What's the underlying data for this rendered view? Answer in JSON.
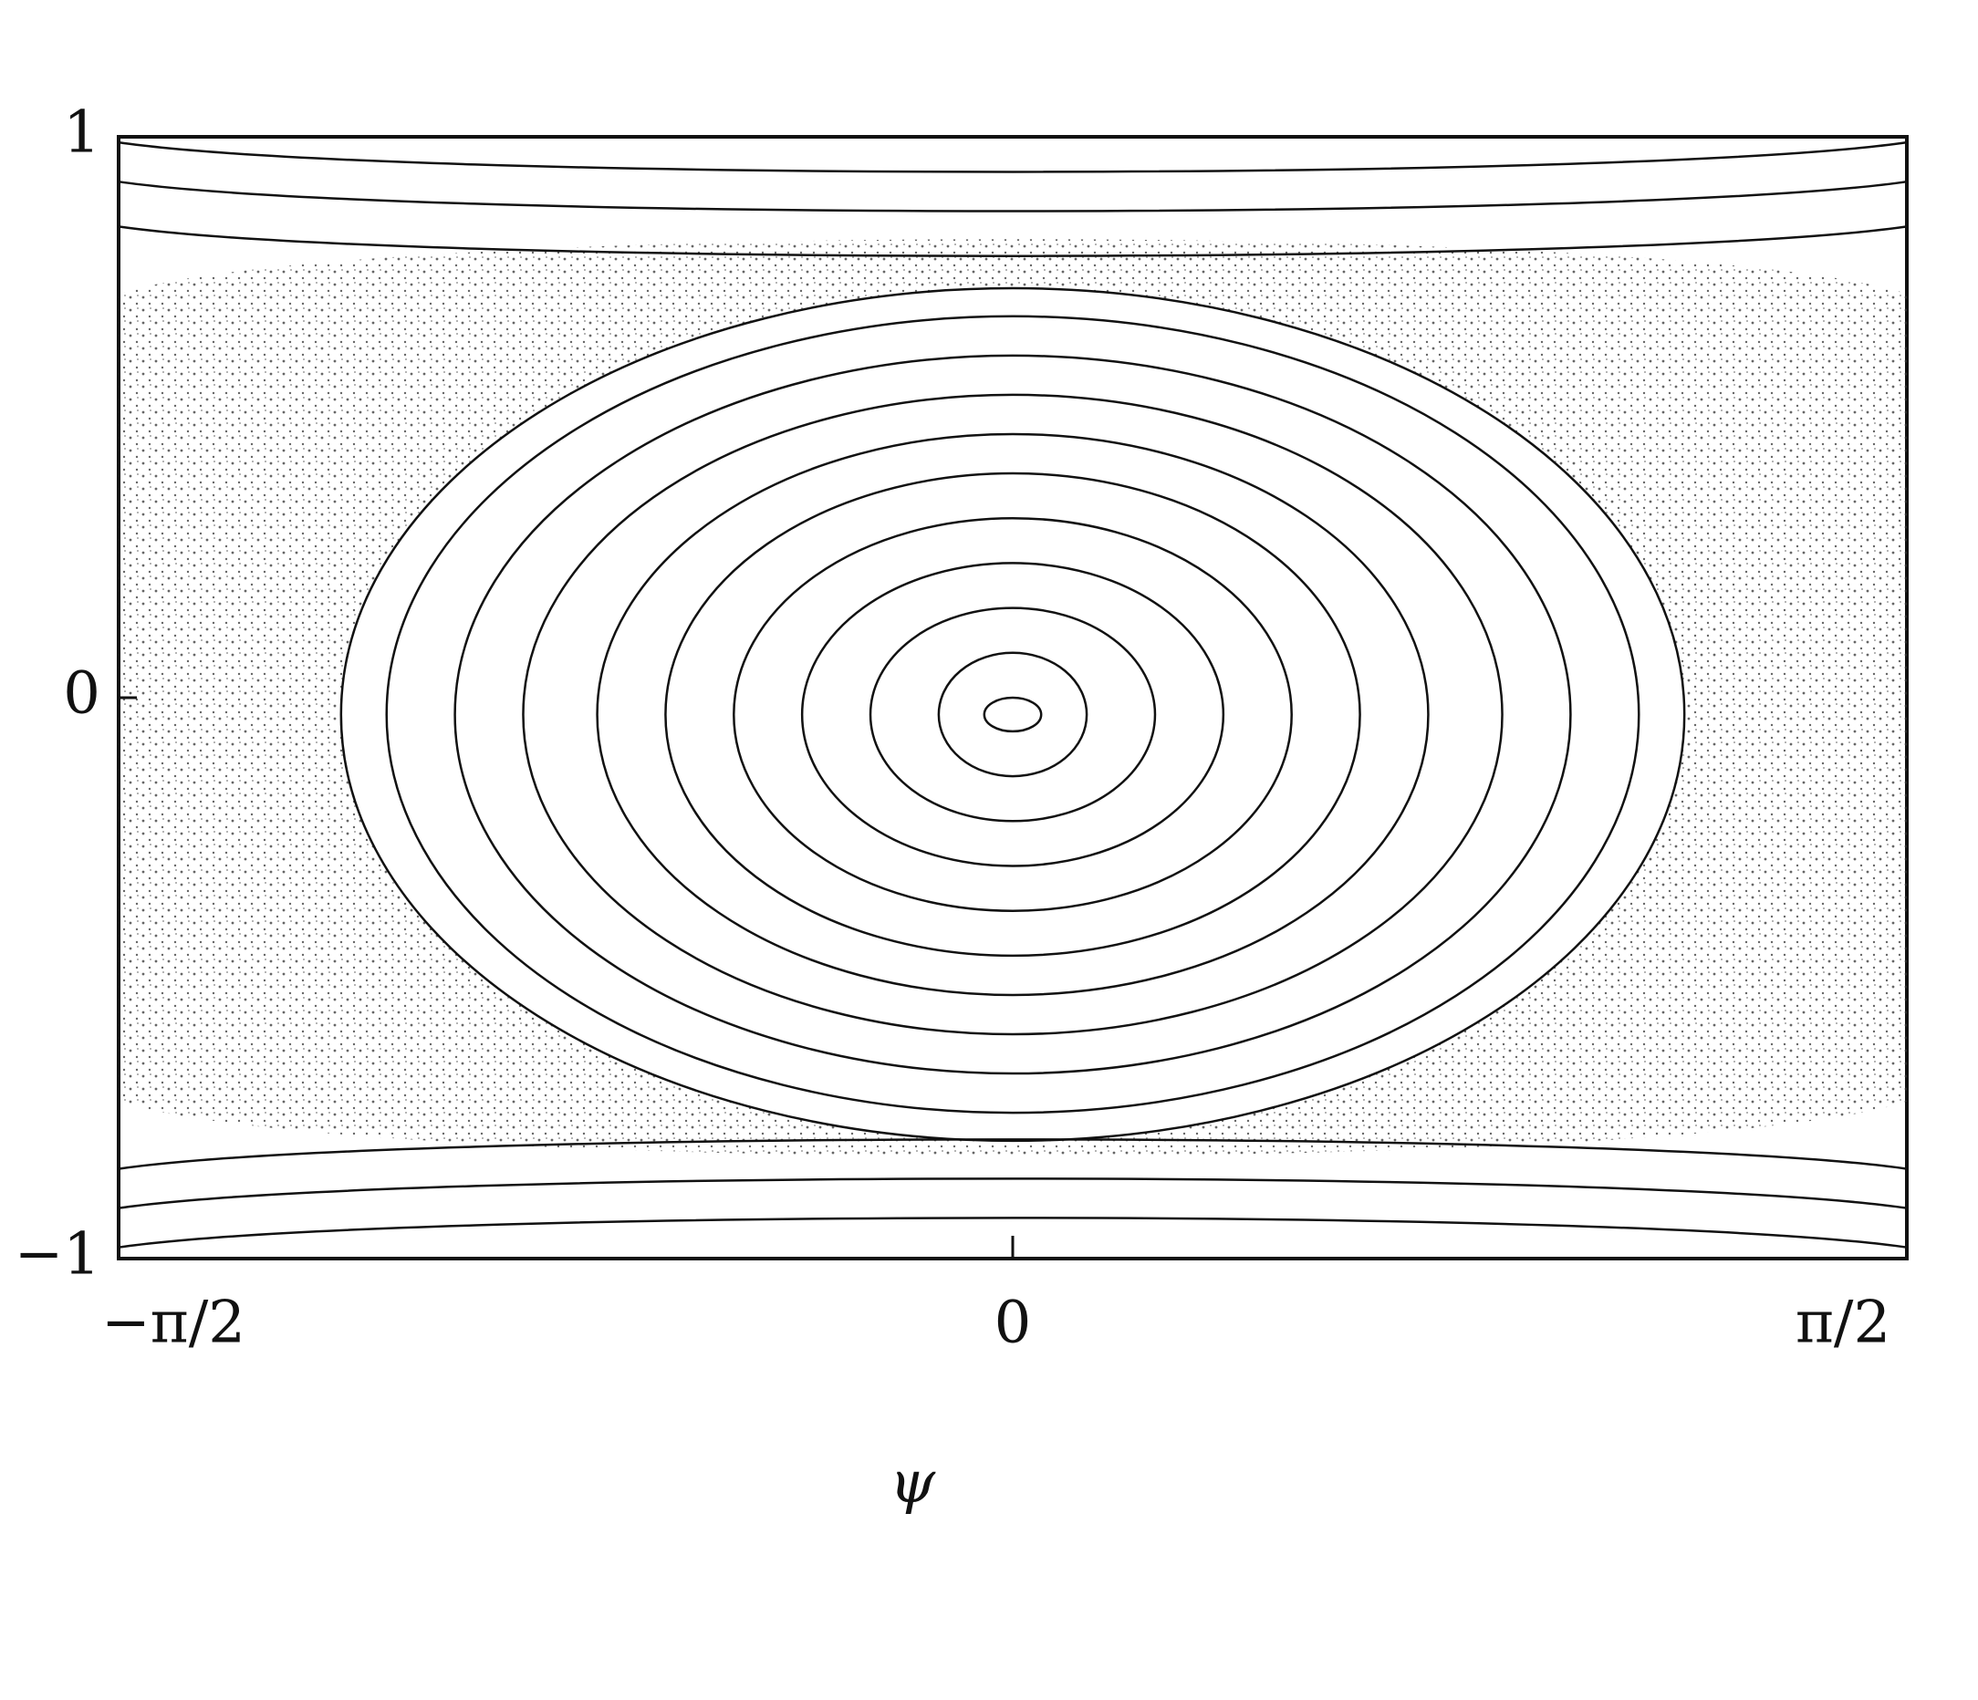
{
  "chart_data": {
    "type": "phase-portrait",
    "x_label": "ψ",
    "xlim": [
      -1.5708,
      1.5708
    ],
    "ylim": [
      -1,
      1
    ],
    "xticks": [
      {
        "value": -1.5708,
        "label": "−π/2"
      },
      0,
      {
        "value": 1.5708,
        "label": "π/2"
      }
    ],
    "yticks": [
      {
        "value": -1,
        "label": "−1"
      },
      0,
      1
    ],
    "center": [
      0,
      -0.03
    ],
    "orbits": [
      {
        "psi": 0.05,
        "y": 0.03
      },
      {
        "psi": 0.13,
        "y": 0.11
      },
      {
        "psi": 0.25,
        "y": 0.19
      },
      {
        "psi": 0.37,
        "y": 0.27
      },
      {
        "psi": 0.49,
        "y": 0.35
      },
      {
        "psi": 0.61,
        "y": 0.43
      },
      {
        "psi": 0.73,
        "y": 0.5
      },
      {
        "psi": 0.86,
        "y": 0.57
      },
      {
        "psi": 0.98,
        "y": 0.64
      },
      {
        "psi": 1.1,
        "y": 0.71
      },
      {
        "psi": 1.18,
        "y": 0.76
      }
    ],
    "rotating_orbits": [
      0.95,
      0.88,
      0.8,
      -0.8,
      -0.87,
      -0.94
    ],
    "color": "#111111"
  }
}
